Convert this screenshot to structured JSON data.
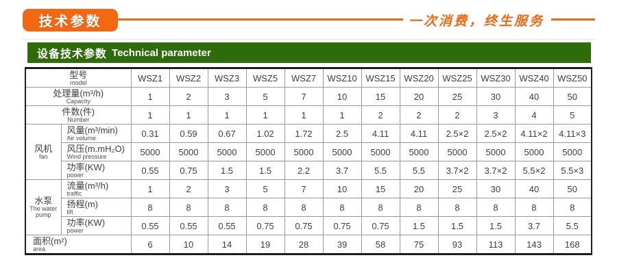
{
  "banner": {
    "badge_label": "技术参数",
    "slogan": "一次消费，终生服务",
    "accent_color": "#f36712"
  },
  "section_header": {
    "title_zh": "设备技术参数",
    "title_en": "Technical parameter",
    "bg_color": "#2e6b0a"
  },
  "table": {
    "header": {
      "label_zh": "型号",
      "label_en": "model",
      "columns": [
        "WSZ1",
        "WSZ2",
        "WSZ3",
        "WSZ5",
        "WSZ7",
        "WSZ10",
        "WSZ15",
        "WSZ20",
        "WSZ25",
        "WSZ30",
        "WSZ40",
        "WSZ50"
      ]
    },
    "rows": [
      {
        "span_label": true,
        "label_zh": "处理量(m³/h)",
        "label_en": "Capacity",
        "values": [
          "1",
          "2",
          "3",
          "5",
          "7",
          "10",
          "15",
          "20",
          "25",
          "30",
          "40",
          "50"
        ]
      },
      {
        "span_label": true,
        "label_zh": "件数(件)",
        "label_en": "Number",
        "values": [
          "1",
          "1",
          "1",
          "1",
          "1",
          "1",
          "2",
          "2",
          "2",
          "3",
          "4",
          "5"
        ]
      },
      {
        "group": {
          "label_zh": "风机",
          "label_en": "fan",
          "rowspan": 3
        },
        "label_zh": "风量(m³/min)",
        "label_en": "Air volume",
        "values": [
          "0.31",
          "0.59",
          "0.67",
          "1.02",
          "1.72",
          "2.5",
          "4.11",
          "4.11",
          "2.5×2",
          "2.5×2",
          "4.11×2",
          "4.11×3"
        ]
      },
      {
        "label_zh": "风压(m.mH₂O)",
        "label_en": "Wind pressure",
        "values": [
          "5000",
          "5000",
          "5000",
          "5000",
          "5000",
          "5000",
          "5000",
          "5000",
          "5000",
          "5000",
          "5000",
          "5000"
        ]
      },
      {
        "label_zh": "功率(KW)",
        "label_en": "power",
        "values": [
          "0.55",
          "0.75",
          "1.5",
          "1.5",
          "2.2",
          "3.7",
          "5.5",
          "5.5",
          "3.7×2",
          "3.7×2",
          "5.5×2",
          "5.5×3"
        ]
      },
      {
        "group": {
          "label_zh": "水泵",
          "label_en": "The water pump",
          "rowspan": 3
        },
        "label_zh": "流量(m³/h)",
        "label_en": "traffic",
        "values": [
          "1",
          "2",
          "3",
          "5",
          "7",
          "10",
          "15",
          "20",
          "25",
          "30",
          "40",
          "50"
        ]
      },
      {
        "label_zh": "扬程(m)",
        "label_en": "lift",
        "values": [
          "8",
          "8",
          "8",
          "8",
          "8",
          "8",
          "8",
          "8",
          "8",
          "8",
          "8",
          "8"
        ]
      },
      {
        "label_zh": "功率(KW)",
        "label_en": "power",
        "values": [
          "0.55",
          "0.55",
          "0.55",
          "0.75",
          "0.75",
          "0.75",
          "0.75",
          "1.5",
          "1.5",
          "1.5",
          "3.7",
          "5.5"
        ]
      },
      {
        "span_label": true,
        "align": "left",
        "label_zh": "面积(m²)",
        "label_en": "area",
        "values": [
          "6",
          "10",
          "14",
          "19",
          "28",
          "39",
          "58",
          "75",
          "93",
          "113",
          "143",
          "168"
        ]
      }
    ]
  }
}
